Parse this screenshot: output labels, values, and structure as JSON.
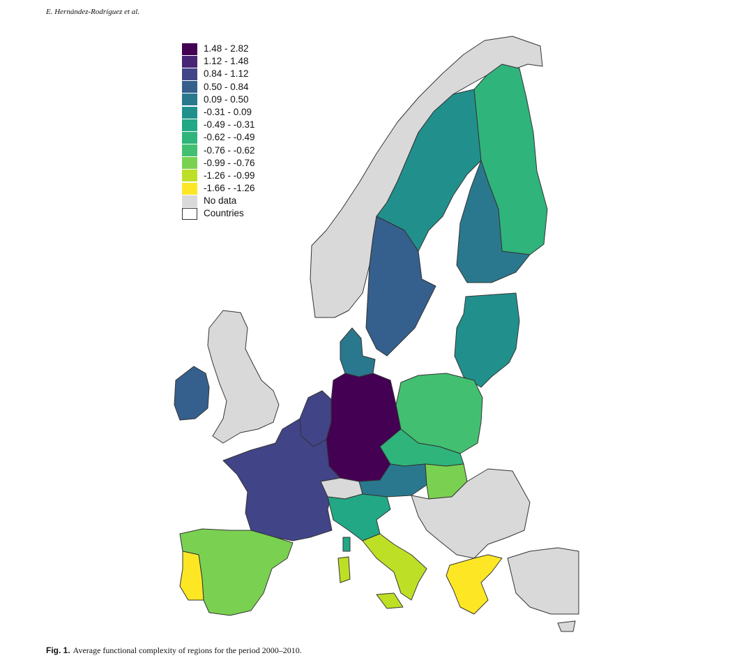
{
  "header": {
    "authors": "E. Hernández-Rodríguez et al."
  },
  "legend": {
    "items": [
      {
        "label": "1.48 - 2.82",
        "color": "#440154"
      },
      {
        "label": "1.12 - 1.48",
        "color": "#482475"
      },
      {
        "label": "0.84 - 1.12",
        "color": "#414487"
      },
      {
        "label": "0.50 - 0.84",
        "color": "#355f8d"
      },
      {
        "label": "0.09 - 0.50",
        "color": "#2a788e"
      },
      {
        "label": "-0.31 - 0.09",
        "color": "#21908d"
      },
      {
        "label": "-0.49 - -0.31",
        "color": "#22a884"
      },
      {
        "label": "-0.62 - -0.49",
        "color": "#2fb47c"
      },
      {
        "label": "-0.76 - -0.62",
        "color": "#43bf71"
      },
      {
        "label": "-0.99 - -0.76",
        "color": "#7ad151"
      },
      {
        "label": "-1.26 - -0.99",
        "color": "#bddf26"
      },
      {
        "label": "-1.66 - -1.26",
        "color": "#fde725"
      },
      {
        "label": "No data",
        "color": "#d9d9d9"
      },
      {
        "label": "Countries",
        "color": "#ffffff"
      }
    ]
  },
  "caption": {
    "label": "Fig. 1.",
    "text": "Average functional complexity of regions for the period 2000–2010."
  },
  "map_regions": [
    {
      "name": "norway",
      "color": "#d9d9d9"
    },
    {
      "name": "sweden-north",
      "color": "#21908d"
    },
    {
      "name": "sweden-south",
      "color": "#355f8d"
    },
    {
      "name": "finland-north",
      "color": "#2fb47c"
    },
    {
      "name": "finland-south",
      "color": "#2a788e"
    },
    {
      "name": "baltics",
      "color": "#21908d"
    },
    {
      "name": "uk",
      "color": "#d9d9d9"
    },
    {
      "name": "ireland",
      "color": "#355f8d"
    },
    {
      "name": "denmark",
      "color": "#2a788e"
    },
    {
      "name": "benelux",
      "color": "#414487"
    },
    {
      "name": "germany",
      "color": "#440154"
    },
    {
      "name": "poland",
      "color": "#43bf71"
    },
    {
      "name": "czechia",
      "color": "#2fb47c"
    },
    {
      "name": "austria",
      "color": "#2a788e"
    },
    {
      "name": "hungary",
      "color": "#7ad151"
    },
    {
      "name": "france",
      "color": "#414487"
    },
    {
      "name": "switzerland",
      "color": "#d9d9d9"
    },
    {
      "name": "spain",
      "color": "#7ad151"
    },
    {
      "name": "portugal",
      "color": "#fde725"
    },
    {
      "name": "italy-north",
      "color": "#22a884"
    },
    {
      "name": "italy-south",
      "color": "#bddf26"
    },
    {
      "name": "greece",
      "color": "#fde725"
    },
    {
      "name": "balkans",
      "color": "#d9d9d9"
    },
    {
      "name": "turkey",
      "color": "#d9d9d9"
    }
  ]
}
